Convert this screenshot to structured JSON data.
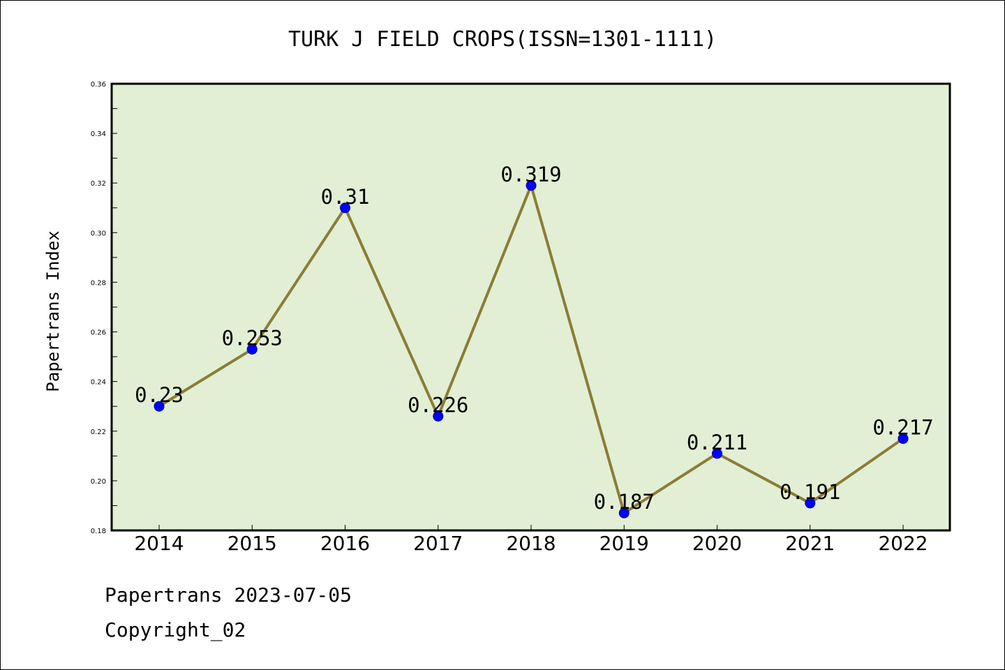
{
  "chart_data": {
    "type": "line",
    "title": "TURK J FIELD CROPS(ISSN=1301-1111)",
    "xlabel": "",
    "ylabel": "Papertrans Index",
    "categories": [
      "2014",
      "2015",
      "2016",
      "2017",
      "2018",
      "2019",
      "2020",
      "2021",
      "2022"
    ],
    "series": [
      {
        "values": [
          0.23,
          0.253,
          0.31,
          0.226,
          0.319,
          0.187,
          0.211,
          0.191,
          0.217
        ],
        "labels": [
          "0.23",
          "0.253",
          "0.31",
          "0.226",
          "0.319",
          "0.187",
          "0.211",
          "0.191",
          "0.217"
        ],
        "line_color": "#8b7d35",
        "marker_color": "#0000ff"
      }
    ],
    "ylim": [
      0.18,
      0.36
    ],
    "yticks": [
      "0.18",
      "0.20",
      "0.22",
      "0.24",
      "0.26",
      "0.28",
      "0.30",
      "0.32",
      "0.34",
      "0.36"
    ],
    "grid": false,
    "legend": "none",
    "plot_background": "#e2efd5"
  },
  "footer": {
    "date_line": "Papertrans 2023-07-05",
    "copyright_line": "Copyright_02"
  }
}
